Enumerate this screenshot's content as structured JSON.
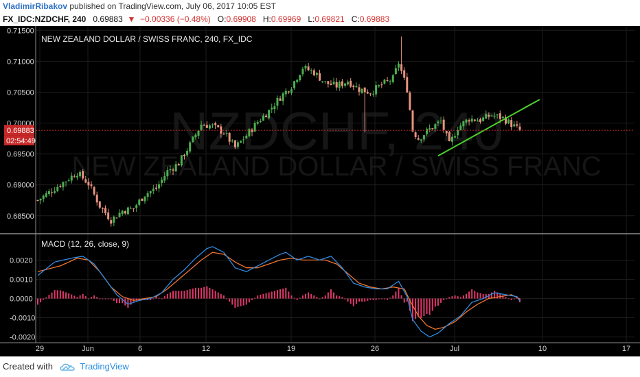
{
  "header": {
    "author": "VladimirRibakov",
    "published": "published on TradingView.com, July 06, 2017 10:05 EST"
  },
  "ohlc_line": {
    "symbol": "FX_IDC:NZDCHF, 240",
    "price": "0.69883",
    "change": "−0.00336 (−0.48%)",
    "o_label": "O:",
    "o_value": "0.69908",
    "h_label": "H:",
    "h_value": "0.69969",
    "l_label": "L:",
    "l_value": "0.69821",
    "c_label": "C:",
    "c_value": "0.69883"
  },
  "footer": {
    "created_with": "Created with",
    "brand": "TradingView"
  },
  "colors": {
    "up": "#4caf50",
    "down": "#e8937f",
    "macd": "#2f8be0",
    "signal": "#f07530",
    "hist": "#e0386b",
    "trendline": "#4cd12a",
    "price_tag": "#c62828"
  },
  "chart_data": [
    {
      "type": "candlestick",
      "title": "NEW ZEALAND DOLLAR / SWISS FRANC, 240, FX_IDC",
      "watermark_symbol": "NZDCHF, 240",
      "watermark_name": "NEW ZEALAND DOLLAR / SWISS FRANC",
      "ylim": [
        0.6822,
        0.7157
      ],
      "y_ticks": [
        "0.71500",
        "0.71000",
        "0.70500",
        "0.70000",
        "0.69500",
        "0.69000",
        "0.68500"
      ],
      "x_ticks": [
        "29",
        "Jun",
        "6",
        "12",
        "19",
        "26",
        "Jul",
        "10",
        "17"
      ],
      "last_price": "0.69883",
      "countdown": "02:54:49",
      "close_path": [
        [
          0,
          0.6875
        ],
        [
          14,
          0.692
        ],
        [
          18,
          0.6902
        ],
        [
          22,
          0.6866
        ],
        [
          26,
          0.6843
        ],
        [
          30,
          0.6858
        ],
        [
          34,
          0.6862
        ],
        [
          38,
          0.6885
        ],
        [
          42,
          0.6894
        ],
        [
          46,
          0.6922
        ],
        [
          50,
          0.6935
        ],
        [
          54,
          0.6965
        ],
        [
          58,
          0.6998
        ],
        [
          62,
          0.6995
        ],
        [
          66,
          0.6985
        ],
        [
          70,
          0.696
        ],
        [
          74,
          0.698
        ],
        [
          78,
          0.7002
        ],
        [
          82,
          0.702
        ],
        [
          86,
          0.7042
        ],
        [
          90,
          0.706
        ],
        [
          94,
          0.709
        ],
        [
          98,
          0.7082
        ],
        [
          102,
          0.7065
        ],
        [
          106,
          0.706
        ],
        [
          110,
          0.7068
        ],
        [
          114,
          0.7055
        ],
        [
          118,
          0.705
        ],
        [
          122,
          0.7062
        ],
        [
          126,
          0.7072
        ],
        [
          128,
          0.7098
        ],
        [
          131,
          0.7055
        ],
        [
          133,
          0.6988
        ],
        [
          135,
          0.6975
        ],
        [
          139,
          0.699
        ],
        [
          143,
          0.7003
        ],
        [
          146,
          0.6965
        ],
        [
          149,
          0.6993
        ],
        [
          153,
          0.7007
        ],
        [
          157,
          0.7005
        ],
        [
          161,
          0.7013
        ],
        [
          165,
          0.7008
        ],
        [
          168,
          0.6998
        ],
        [
          171,
          0.6988
        ]
      ],
      "trendline": [
        [
          142,
          0.6947
        ],
        [
          178,
          0.7038
        ]
      ],
      "n_bars": 172
    },
    {
      "type": "line",
      "title": "MACD (12, 26, close, 9)",
      "ylim": [
        -0.0023,
        0.0033
      ],
      "y_ticks": [
        "0.0020",
        "0.0010",
        "0.0000",
        "-0.0010",
        "-0.0020"
      ],
      "series": [
        {
          "name": "",
          "path": [
            [
              0,
              0.0012
            ],
            [
              6,
              0.0019
            ],
            [
              12,
              0.0021
            ],
            [
              16,
              0.0022
            ],
            [
              20,
              0.0018
            ],
            [
              24,
              0.001
            ],
            [
              28,
              0.0002
            ],
            [
              32,
              -0.0003
            ],
            [
              36,
              -0.0001
            ],
            [
              40,
              0.0
            ],
            [
              44,
              0.0003
            ],
            [
              48,
              0.001
            ],
            [
              52,
              0.0015
            ],
            [
              56,
              0.0021
            ],
            [
              60,
              0.0026
            ],
            [
              62,
              0.0027
            ],
            [
              66,
              0.0024
            ],
            [
              70,
              0.0016
            ],
            [
              74,
              0.0014
            ],
            [
              78,
              0.0017
            ],
            [
              82,
              0.002
            ],
            [
              86,
              0.0023
            ],
            [
              88,
              0.0024
            ],
            [
              92,
              0.002
            ],
            [
              96,
              0.0022
            ],
            [
              100,
              0.002
            ],
            [
              104,
              0.0022
            ],
            [
              108,
              0.0016
            ],
            [
              112,
              0.0008
            ],
            [
              116,
              0.0006
            ],
            [
              120,
              0.0005
            ],
            [
              124,
              0.0005
            ],
            [
              128,
              0.0009
            ],
            [
              131,
              0.0001
            ],
            [
              133,
              -0.0011
            ],
            [
              136,
              -0.0017
            ],
            [
              139,
              -0.002
            ],
            [
              142,
              -0.0018
            ],
            [
              146,
              -0.0013
            ],
            [
              150,
              -0.0009
            ],
            [
              154,
              -0.0002
            ],
            [
              158,
              0.0
            ],
            [
              162,
              0.0003
            ],
            [
              166,
              0.0002
            ],
            [
              170,
              0.0001
            ],
            [
              172,
              -0.0004
            ]
          ]
        },
        {
          "name": "",
          "path": [
            [
              0,
              0.0014
            ],
            [
              8,
              0.0017
            ],
            [
              14,
              0.0021
            ],
            [
              18,
              0.002
            ],
            [
              22,
              0.0014
            ],
            [
              26,
              0.0006
            ],
            [
              30,
              0.0001
            ],
            [
              34,
              -0.0001
            ],
            [
              38,
              0.0
            ],
            [
              42,
              0.0001
            ],
            [
              46,
              0.0005
            ],
            [
              50,
              0.001
            ],
            [
              54,
              0.0015
            ],
            [
              58,
              0.002
            ],
            [
              62,
              0.0024
            ],
            [
              66,
              0.0023
            ],
            [
              70,
              0.0019
            ],
            [
              74,
              0.0016
            ],
            [
              78,
              0.0016
            ],
            [
              82,
              0.0018
            ],
            [
              86,
              0.002
            ],
            [
              90,
              0.0021
            ],
            [
              94,
              0.002
            ],
            [
              98,
              0.002
            ],
            [
              102,
              0.002
            ],
            [
              106,
              0.0018
            ],
            [
              110,
              0.0013
            ],
            [
              114,
              0.0008
            ],
            [
              118,
              0.0006
            ],
            [
              122,
              0.0005
            ],
            [
              126,
              0.0006
            ],
            [
              130,
              0.0005
            ],
            [
              132,
              -0.0001
            ],
            [
              135,
              -0.0009
            ],
            [
              138,
              -0.0014
            ],
            [
              141,
              -0.0016
            ],
            [
              144,
              -0.0015
            ],
            [
              148,
              -0.0012
            ],
            [
              152,
              -0.0007
            ],
            [
              156,
              -0.0003
            ],
            [
              160,
              0.0
            ],
            [
              164,
              0.0001
            ],
            [
              168,
              0.0002
            ],
            [
              172,
              -0.0001
            ]
          ]
        }
      ]
    }
  ]
}
